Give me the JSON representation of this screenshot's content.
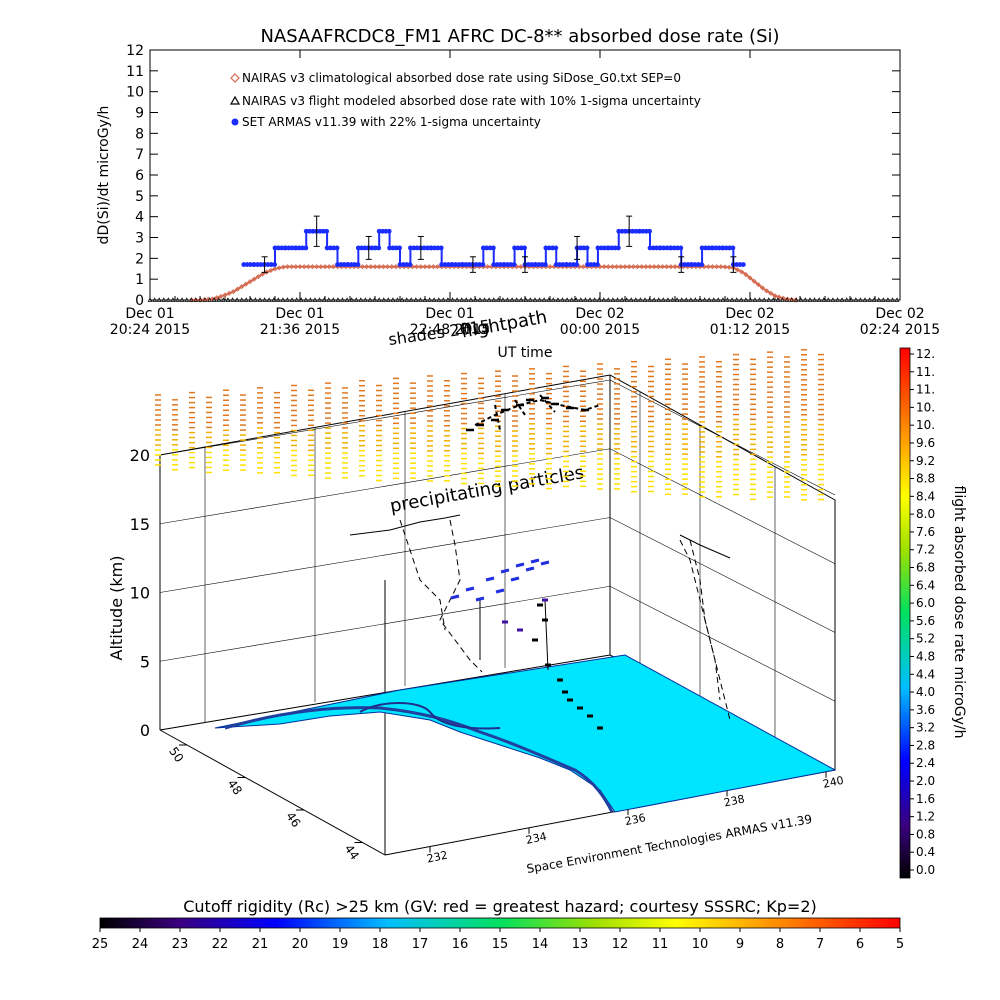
{
  "chart_data": [
    {
      "type": "line",
      "title": "NASAAFRCDC8_FM1 AFRC DC-8** absorbed dose rate (Si)",
      "ylabel": "dD(Si)/dt microGy/h",
      "xlabel": "UT time",
      "ylim": [
        0,
        12
      ],
      "yticks": [
        "0",
        "1",
        "2",
        "3",
        "4",
        "5",
        "6",
        "7",
        "8",
        "9",
        "10",
        "11",
        "12"
      ],
      "xticks": [
        {
          "line1": "Dec 01",
          "line2": "20:24 2015"
        },
        {
          "line1": "Dec 01",
          "line2": "21:36 2015"
        },
        {
          "line1": "Dec 01",
          "line2": "22:48 2015"
        },
        {
          "line1": "Dec 02",
          "line2": "00:00 2015"
        },
        {
          "line1": "Dec 02",
          "line2": "01:12 2015"
        },
        {
          "line1": "Dec 02",
          "line2": "02:24 2015"
        }
      ],
      "xlim_minutes": [
        0,
        360
      ],
      "legend": [
        {
          "label": "NAIRAS v3 climatological absorbed dose rate using SiDose_G0.txt SEP=0",
          "marker": "diamond",
          "color": "#d46a50"
        },
        {
          "label": "NAIRAS v3 flight modeled absorbed dose rate with 10% 1-sigma uncertainty",
          "marker": "triangle",
          "color": "#000000"
        },
        {
          "label": "SET ARMAS v11.39 with 22% 1-sigma uncertainty",
          "marker": "circle",
          "color": "#1a2cff"
        }
      ],
      "legend_position": "top-left",
      "series": [
        {
          "name": "NAIRAS v3 climatological absorbed dose rate using SiDose_G0.txt SEP=0",
          "x": [
            20,
            25,
            30,
            35,
            40,
            45,
            50,
            55,
            60,
            65,
            70,
            80,
            100,
            120,
            150,
            180,
            210,
            240,
            260,
            275,
            280,
            285,
            290,
            295,
            300,
            305,
            310
          ],
          "values": [
            0,
            0,
            0.05,
            0.2,
            0.4,
            0.7,
            1.0,
            1.3,
            1.5,
            1.6,
            1.6,
            1.6,
            1.6,
            1.6,
            1.6,
            1.6,
            1.6,
            1.6,
            1.6,
            1.6,
            1.55,
            1.3,
            0.9,
            0.5,
            0.2,
            0.05,
            0
          ]
        },
        {
          "name": "NAIRAS v3 flight modeled absorbed dose rate with 10% 1-sigma uncertainty",
          "x": [
            0,
            360
          ],
          "values": [
            0,
            0
          ]
        },
        {
          "name": "SET ARMAS v11.39 with 22% 1-sigma uncertainty",
          "x": [
            45,
            50,
            55,
            60,
            65,
            70,
            75,
            80,
            85,
            90,
            95,
            100,
            105,
            110,
            115,
            120,
            125,
            130,
            135,
            140,
            145,
            150,
            155,
            160,
            165,
            170,
            175,
            180,
            185,
            190,
            195,
            200,
            205,
            210,
            215,
            220,
            225,
            230,
            235,
            240,
            245,
            250,
            255,
            260,
            265,
            270,
            275,
            280,
            285
          ],
          "values": [
            1.7,
            1.7,
            1.7,
            2.5,
            2.5,
            2.5,
            3.3,
            3.3,
            2.5,
            1.7,
            1.7,
            2.5,
            2.5,
            3.3,
            2.5,
            1.7,
            2.5,
            2.5,
            2.5,
            1.7,
            1.7,
            1.7,
            1.7,
            2.5,
            1.7,
            1.7,
            2.5,
            1.7,
            1.7,
            2.5,
            1.7,
            1.7,
            2.5,
            1.7,
            2.5,
            2.5,
            3.3,
            3.3,
            3.3,
            2.5,
            2.5,
            2.5,
            1.7,
            1.7,
            2.5,
            2.5,
            2.5,
            1.7,
            1.7
          ]
        }
      ]
    },
    {
      "type": "scatter",
      "subtype": "3d-flightpath",
      "title": "flightpath",
      "overlay_labels": [
        "shades 2015",
        "precipitating particles"
      ],
      "zlabel": "Altitude (km)",
      "zticks": [
        "0",
        "5",
        "10",
        "15",
        "20"
      ],
      "y_axis_ticks": [
        "50",
        "48",
        "46",
        "44"
      ],
      "x_axis_ticks": [
        "232",
        "234",
        "236",
        "238",
        "240"
      ],
      "x_axis_label": "Space Environment Technologies ARMAS v11.39",
      "colorbar": {
        "label": "flight absorbed dose rate microGy/h",
        "ticks": [
          "12.",
          "11.",
          "11.",
          "10.",
          "10.",
          "9.6",
          "9.2",
          "8.8",
          "8.4",
          "8.0",
          "7.6",
          "7.2",
          "6.8",
          "6.4",
          "6.0",
          "5.6",
          "5.2",
          "4.8",
          "4.4",
          "4.0",
          "3.6",
          "3.2",
          "2.8",
          "2.4",
          "2.0",
          "1.6",
          "1.2",
          "0.8",
          "0.4",
          "0.0"
        ],
        "range": [
          0,
          12
        ]
      },
      "bottom_colorbar": {
        "label": "Cutoff rigidity (Rc) >25 km (GV: red = greatest hazard; courtesy SSSRC; Kp=2)",
        "ticks": [
          "25",
          "24",
          "23",
          "22",
          "21",
          "20",
          "19",
          "18",
          "17",
          "16",
          "15",
          "14",
          "13",
          "12",
          "11",
          "10",
          "9",
          "8",
          "7",
          "6",
          "5"
        ]
      }
    }
  ]
}
